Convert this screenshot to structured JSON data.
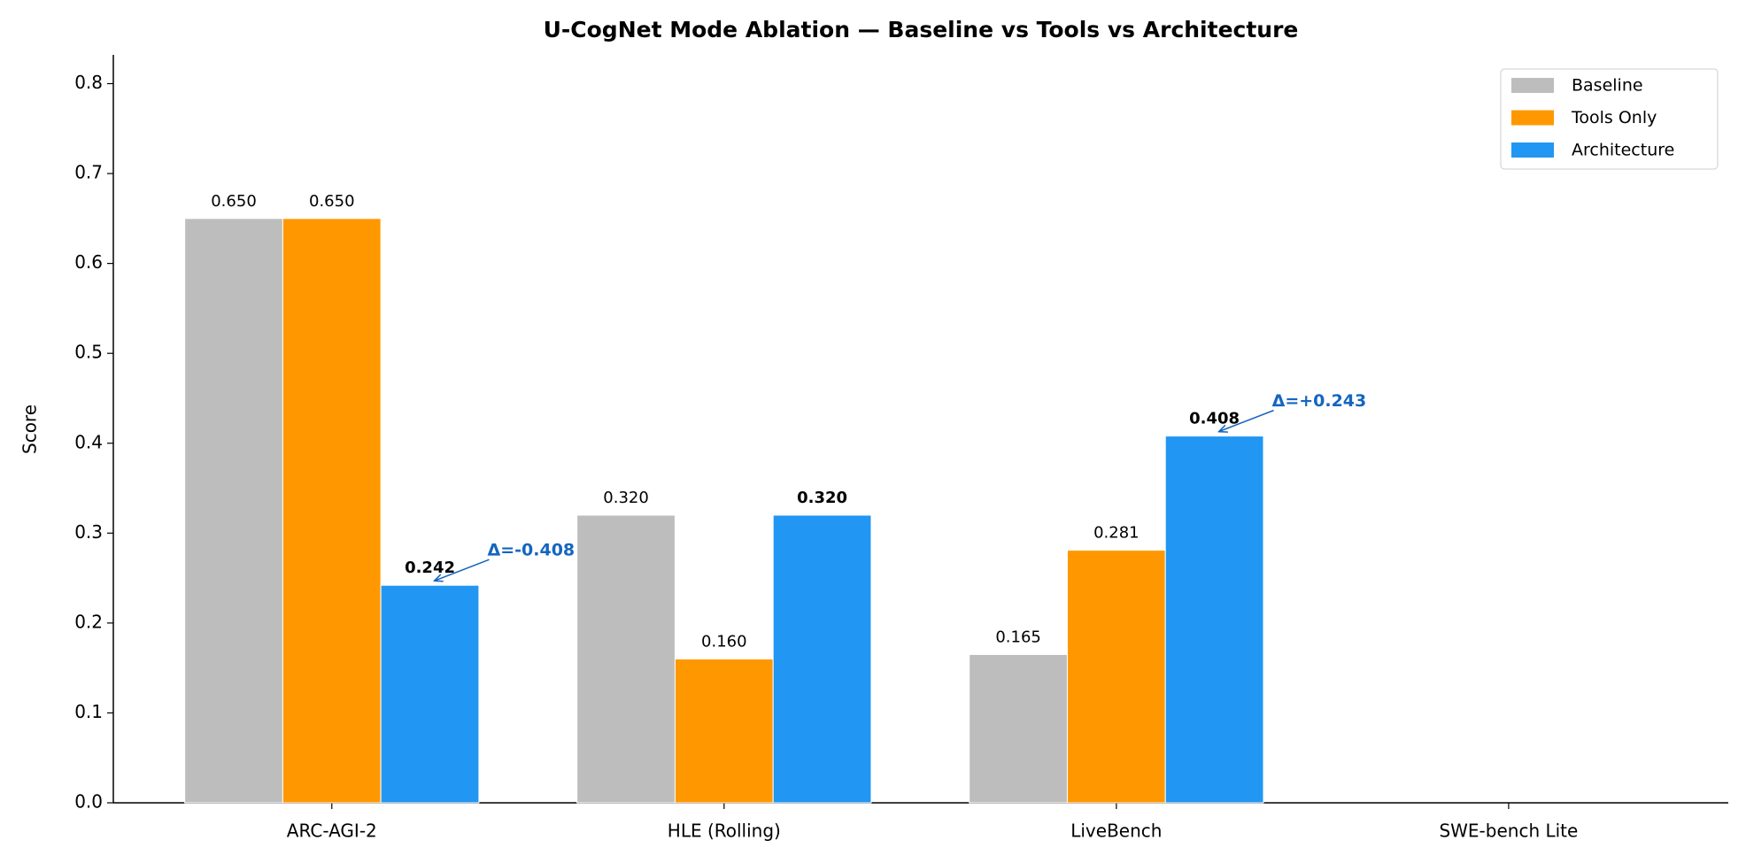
{
  "chart_data": {
    "type": "bar",
    "title": "U-CogNet Mode Ablation — Baseline vs Tools vs Architecture",
    "y_label": "Score",
    "categories": [
      "ARC-AGI-2",
      "HLE (Rolling)",
      "LiveBench",
      "SWE-bench Lite"
    ],
    "series": [
      {
        "name": "Baseline",
        "color": "#bdbdbd",
        "values": [
          0.65,
          0.32,
          0.165,
          null
        ],
        "value_labels": [
          "0.650",
          "0.320",
          "0.165",
          null
        ],
        "label_bold": false
      },
      {
        "name": "Tools Only",
        "color": "#ff9800",
        "values": [
          0.65,
          0.16,
          0.281,
          null
        ],
        "value_labels": [
          "0.650",
          "0.160",
          "0.281",
          null
        ],
        "label_bold": false
      },
      {
        "name": "Architecture",
        "color": "#2196f3",
        "values": [
          0.242,
          0.32,
          0.408,
          null
        ],
        "value_labels": [
          "0.242",
          "0.320",
          "0.408",
          null
        ],
        "label_bold": true
      }
    ],
    "annotations": [
      {
        "text": "Δ=-0.408",
        "color": "#1565c0"
      },
      {
        "text": "Δ=+0.243",
        "color": "#1565c0"
      }
    ],
    "ylim": [
      0,
      0.832
    ],
    "yticks": [
      {
        "value": 0,
        "label": "0.0"
      },
      0.1,
      0.2,
      0.3,
      0.4,
      0.5,
      0.6,
      0.7,
      0.8
    ],
    "grid": false,
    "legend": "upper right"
  }
}
